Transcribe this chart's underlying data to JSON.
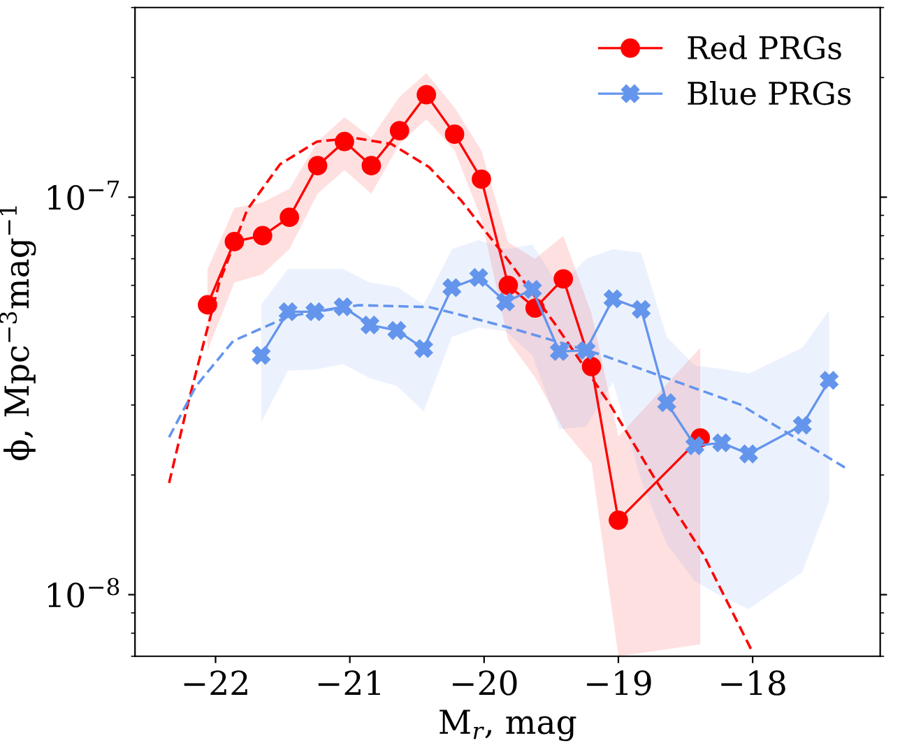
{
  "chart_data": {
    "type": "line",
    "xlabel": "M$_{r}$, mag",
    "ylabel": "ϕ, Mpc$^{−3}$mag$^{−1}$",
    "log": "y",
    "legend": "top right",
    "grid": false,
    "xlim": [
      -22.6,
      -17.05
    ],
    "xticks": [
      {
        "value": -22,
        "label": "−22"
      },
      {
        "value": -21,
        "label": "−21"
      },
      {
        "value": -20,
        "label": "−20"
      },
      {
        "value": -19,
        "label": "−19"
      },
      {
        "value": -18,
        "label": "−18"
      }
    ],
    "ylim": [
      7e-09,
      3e-07
    ],
    "yticks": [
      {
        "value": 1e-08,
        "label": "10$^{−8}$"
      },
      {
        "value": 1e-07,
        "label": "10$^{−7}$"
      }
    ],
    "series": [
      {
        "name": "Red PRGs",
        "color": "#ff0000",
        "marker": "circle",
        "line_style": "solid",
        "x": [
          -22.06,
          -21.86,
          -21.65,
          -21.45,
          -21.24,
          -21.04,
          -20.84,
          -20.63,
          -20.43,
          -20.22,
          -20.02,
          -19.82,
          -19.62,
          -19.41,
          -19.2,
          -19.0,
          -18.39
        ],
        "values": [
          5.36e-08,
          7.73e-08,
          8e-08,
          8.9e-08,
          1.2e-07,
          1.38e-07,
          1.2e-07,
          1.47e-07,
          1.81e-07,
          1.44e-07,
          1.11e-07,
          6e-08,
          5.26e-08,
          6.23e-08,
          3.75e-08,
          1.54e-08,
          2.48e-08
        ],
        "lower": [
          4.11e-08,
          6.1e-08,
          6.4e-08,
          7.4e-08,
          1.02e-07,
          1.17e-07,
          1.02e-07,
          1.36e-07,
          1.57e-07,
          1.31e-07,
          8.8e-08,
          4.35e-08,
          3.52e-08,
          2.61e-08,
          2.14e-08,
          7e-09,
          7.5e-09
        ],
        "upper": [
          6.59e-08,
          9.4e-08,
          9.7e-08,
          1.05e-07,
          1.38e-07,
          1.59e-07,
          1.41e-07,
          1.79e-07,
          2.05e-07,
          1.68e-07,
          1.31e-07,
          7.7e-08,
          7e-08,
          8e-08,
          5.1e-08,
          2.5e-08,
          4.18e-08
        ]
      },
      {
        "name": "Blue PRGs",
        "color": "#6495ed",
        "marker": "cross",
        "line_style": "solid",
        "x": [
          -21.66,
          -21.46,
          -21.26,
          -21.05,
          -20.85,
          -20.65,
          -20.45,
          -20.24,
          -20.04,
          -19.84,
          -19.64,
          -19.44,
          -19.24,
          -19.04,
          -18.83,
          -18.64,
          -18.43,
          -18.23,
          -18.03,
          -17.63,
          -17.43
        ],
        "values": [
          4e-08,
          5.15e-08,
          5.15e-08,
          5.3e-08,
          4.77e-08,
          4.62e-08,
          4.16e-08,
          5.92e-08,
          6.28e-08,
          5.45e-08,
          5.86e-08,
          4.09e-08,
          4.12e-08,
          5.55e-08,
          5.22e-08,
          3.04e-08,
          2.37e-08,
          2.41e-08,
          2.26e-08,
          2.67e-08,
          3.46e-08
        ],
        "lower": [
          2.71e-08,
          3.66e-08,
          3.68e-08,
          3.8e-08,
          3.5e-08,
          3.35e-08,
          2.89e-08,
          4.45e-08,
          4.7e-08,
          4.6e-08,
          4e-08,
          2.61e-08,
          2.65e-08,
          3.43e-08,
          1.94e-08,
          1.34e-08,
          1.08e-08,
          9.9e-09,
          9.2e-09,
          1.14e-08,
          1.72e-08
        ],
        "upper": [
          5.37e-08,
          6.6e-08,
          6.6e-08,
          6.6e-08,
          6.1e-08,
          5.95e-08,
          5.37e-08,
          7.4e-08,
          7.8e-08,
          7.4e-08,
          7.6e-08,
          5.95e-08,
          7e-08,
          7.4e-08,
          7.25e-08,
          4.45e-08,
          3.77e-08,
          3.7e-08,
          3.6e-08,
          4.18e-08,
          5.2e-08
        ]
      },
      {
        "color": "#ff0000",
        "marker": "none",
        "line_style": "dashed",
        "x": [
          -22.346,
          -22.215,
          -21.972,
          -21.764,
          -21.52,
          -21.245,
          -20.968,
          -20.69,
          -20.41,
          -20.17,
          -19.825,
          -19.478,
          -19.063,
          -18.717,
          -18.371,
          -18.007
        ],
        "values": [
          1.91e-08,
          2.94e-08,
          6.1e-08,
          9.3e-08,
          1.21e-07,
          1.38e-07,
          1.41e-07,
          1.36e-07,
          1.19e-07,
          9.8e-08,
          6.97e-08,
          4.83e-08,
          3.01e-08,
          1.93e-08,
          1.27e-08,
          7.24e-09
        ]
      },
      {
        "color": "#6495ed",
        "marker": "none",
        "line_style": "dashed",
        "x": [
          -22.346,
          -22.145,
          -21.868,
          -21.452,
          -20.933,
          -20.41,
          -20.17,
          -19.756,
          -19.132,
          -18.094,
          -17.314
        ],
        "values": [
          2.49e-08,
          3.35e-08,
          4.35e-08,
          5.02e-08,
          5.35e-08,
          5.29e-08,
          5.05e-08,
          4.64e-08,
          4.02e-08,
          3.01e-08,
          2.09e-08
        ]
      }
    ]
  }
}
